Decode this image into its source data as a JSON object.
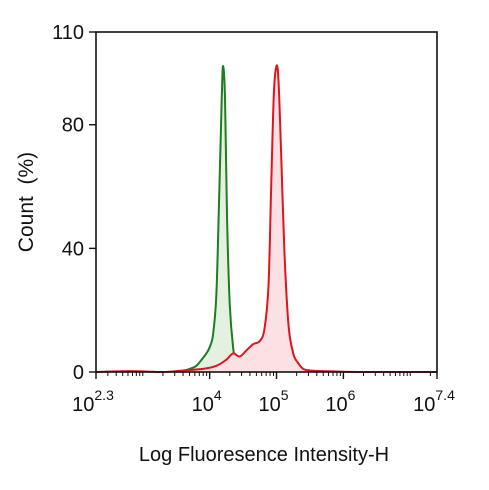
{
  "chart_data": {
    "type": "area",
    "title": "",
    "xlabel": "Log Fluoresence Intensity-H",
    "ylabel": "Count  (%)",
    "x_scale": "log10",
    "xlim": [
      2.3,
      7.4
    ],
    "ylim": [
      0,
      110
    ],
    "x_ticks": [
      {
        "exp": 2.3,
        "base": "10",
        "sup": "2.3"
      },
      {
        "exp": 4,
        "base": "10",
        "sup": "4"
      },
      {
        "exp": 5,
        "base": "10",
        "sup": "5"
      },
      {
        "exp": 6,
        "base": "10",
        "sup": "6"
      },
      {
        "exp": 7.4,
        "base": "10",
        "sup": "7.4"
      }
    ],
    "y_ticks": [
      {
        "value": 0,
        "label": "0"
      },
      {
        "value": 40,
        "label": "40"
      },
      {
        "value": 80,
        "label": "80"
      },
      {
        "value": 110,
        "label": "110"
      }
    ],
    "grid": false,
    "legend": "none",
    "series": [
      {
        "color": "#1e7d1e",
        "fill": "#e4f1e0",
        "log_x": [
          3.55,
          3.7,
          3.8,
          3.88,
          3.95,
          4.0,
          4.05,
          4.1,
          4.14,
          4.18,
          4.2,
          4.23,
          4.26,
          4.3,
          4.35,
          4.4,
          4.45,
          4.5
        ],
        "y": [
          0,
          1,
          2,
          4,
          6,
          8,
          12,
          25,
          55,
          88,
          99,
          88,
          50,
          22,
          8,
          2,
          0.5,
          0
        ]
      },
      {
        "color": "#e0141e",
        "fill": "#fbe1e3",
        "log_x": [
          2.3,
          2.8,
          3.3,
          3.6,
          3.9,
          4.1,
          4.25,
          4.35,
          4.45,
          4.55,
          4.65,
          4.75,
          4.82,
          4.88,
          4.92,
          4.96,
          5.0,
          5.03,
          5.07,
          5.12,
          5.18,
          5.25,
          5.32,
          5.4,
          5.5,
          5.7,
          6.2,
          7.4
        ],
        "y": [
          0,
          0.3,
          0,
          0.5,
          1,
          2,
          4,
          6,
          5,
          7,
          9,
          10,
          14,
          28,
          60,
          90,
          99,
          94,
          70,
          38,
          15,
          6,
          3,
          1,
          0.5,
          0.3,
          0,
          0
        ]
      }
    ]
  }
}
